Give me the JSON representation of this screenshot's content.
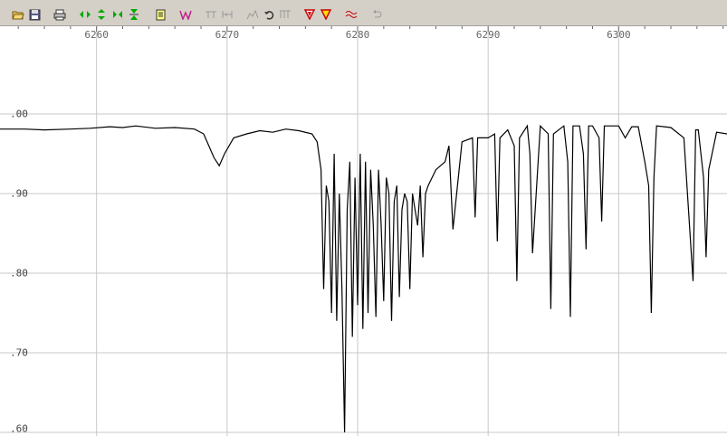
{
  "toolbar": {
    "buttons": [
      {
        "icon": "open-folder-icon"
      },
      {
        "icon": "save-disk-icon"
      },
      {
        "icon": "print-icon"
      },
      {
        "icon": "expand-horizontal-icon"
      },
      {
        "icon": "expand-vertical-icon"
      },
      {
        "icon": "shrink-horizontal-icon"
      },
      {
        "icon": "shrink-vertical-icon"
      },
      {
        "icon": "notes-icon"
      },
      {
        "icon": "spectrum-w-icon"
      },
      {
        "icon": "line-marker-icon"
      },
      {
        "icon": "line-measure-icon"
      },
      {
        "icon": "continuum-icon"
      },
      {
        "icon": "undo-icon"
      },
      {
        "icon": "baseline-icon"
      },
      {
        "icon": "filter-red-icon"
      },
      {
        "icon": "filter-yellow-icon"
      },
      {
        "icon": "smooth-wave-icon"
      },
      {
        "icon": "reset-icon"
      }
    ]
  },
  "chart_data": {
    "type": "line",
    "x_ticks": [
      "6260",
      "6270",
      "6280",
      "6290",
      "6300"
    ],
    "y_ticks": [
      ".00",
      ".90",
      ".80",
      ".70",
      ".60"
    ],
    "xlim": [
      6252.6,
      6308.3
    ],
    "ylim": [
      0.6,
      1.0
    ],
    "grid": true,
    "line_color": "#000000",
    "grid_color": "#c8c8c8",
    "series": [
      {
        "x": [
          6252.6,
          6254.5,
          6256.0,
          6258.0,
          6259.5,
          6261.0,
          6262.0,
          6263.0,
          6264.5,
          6266.0,
          6267.5,
          6268.2,
          6268.6,
          6269.0,
          6269.4,
          6269.8,
          6270.5,
          6271.5,
          6272.5,
          6273.5,
          6274.5,
          6275.5,
          6276.5,
          6276.9,
          6277.2,
          6277.4,
          6277.6,
          6277.8,
          6278.0,
          6278.2,
          6278.4,
          6278.6,
          6278.8,
          6279.0,
          6279.2,
          6279.4,
          6279.6,
          6279.8,
          6280.0,
          6280.2,
          6280.4,
          6280.6,
          6280.8,
          6281.0,
          6281.2,
          6281.4,
          6281.6,
          6281.8,
          6282.0,
          6282.2,
          6282.4,
          6282.6,
          6282.8,
          6283.0,
          6283.2,
          6283.4,
          6283.6,
          6283.8,
          6284.0,
          6284.2,
          6284.4,
          6284.6,
          6284.8,
          6285.0,
          6285.2,
          6285.4,
          6286.0,
          6286.7,
          6287.0,
          6287.3,
          6288.0,
          6288.8,
          6289.0,
          6289.2,
          6290.0,
          6290.5,
          6290.7,
          6290.9,
          6291.5,
          6292.0,
          6292.2,
          6292.4,
          6293.0,
          6293.2,
          6293.4,
          6294.0,
          6294.6,
          6294.8,
          6295.0,
          6295.8,
          6296.1,
          6296.3,
          6296.5,
          6297.0,
          6297.3,
          6297.5,
          6297.7,
          6298.0,
          6298.5,
          6298.7,
          6298.9,
          6299.5,
          6300.0,
          6300.5,
          6301.0,
          6301.5,
          6302.0,
          6302.3,
          6302.5,
          6302.7,
          6302.9,
          6303.5,
          6304.0,
          6305.0,
          6305.7,
          6305.9,
          6306.1,
          6306.5,
          6306.7,
          6306.9,
          6307.5,
          6308.3
        ],
        "y": [
          0.981,
          0.981,
          0.98,
          0.981,
          0.982,
          0.984,
          0.983,
          0.985,
          0.982,
          0.983,
          0.981,
          0.975,
          0.96,
          0.945,
          0.935,
          0.95,
          0.97,
          0.975,
          0.979,
          0.977,
          0.981,
          0.979,
          0.975,
          0.965,
          0.93,
          0.78,
          0.91,
          0.89,
          0.75,
          0.95,
          0.74,
          0.9,
          0.78,
          0.6,
          0.88,
          0.94,
          0.72,
          0.92,
          0.76,
          0.95,
          0.73,
          0.94,
          0.75,
          0.93,
          0.86,
          0.745,
          0.93,
          0.86,
          0.765,
          0.92,
          0.9,
          0.74,
          0.89,
          0.91,
          0.77,
          0.88,
          0.9,
          0.89,
          0.78,
          0.9,
          0.88,
          0.86,
          0.91,
          0.82,
          0.9,
          0.91,
          0.93,
          0.94,
          0.96,
          0.855,
          0.965,
          0.97,
          0.87,
          0.97,
          0.97,
          0.975,
          0.84,
          0.97,
          0.98,
          0.96,
          0.79,
          0.97,
          0.985,
          0.95,
          0.825,
          0.985,
          0.975,
          0.755,
          0.975,
          0.985,
          0.94,
          0.745,
          0.985,
          0.985,
          0.95,
          0.83,
          0.985,
          0.985,
          0.97,
          0.865,
          0.985,
          0.985,
          0.985,
          0.97,
          0.984,
          0.984,
          0.94,
          0.91,
          0.75,
          0.92,
          0.985,
          0.984,
          0.983,
          0.97,
          0.79,
          0.98,
          0.98,
          0.92,
          0.82,
          0.93,
          0.977,
          0.975
        ]
      }
    ]
  }
}
